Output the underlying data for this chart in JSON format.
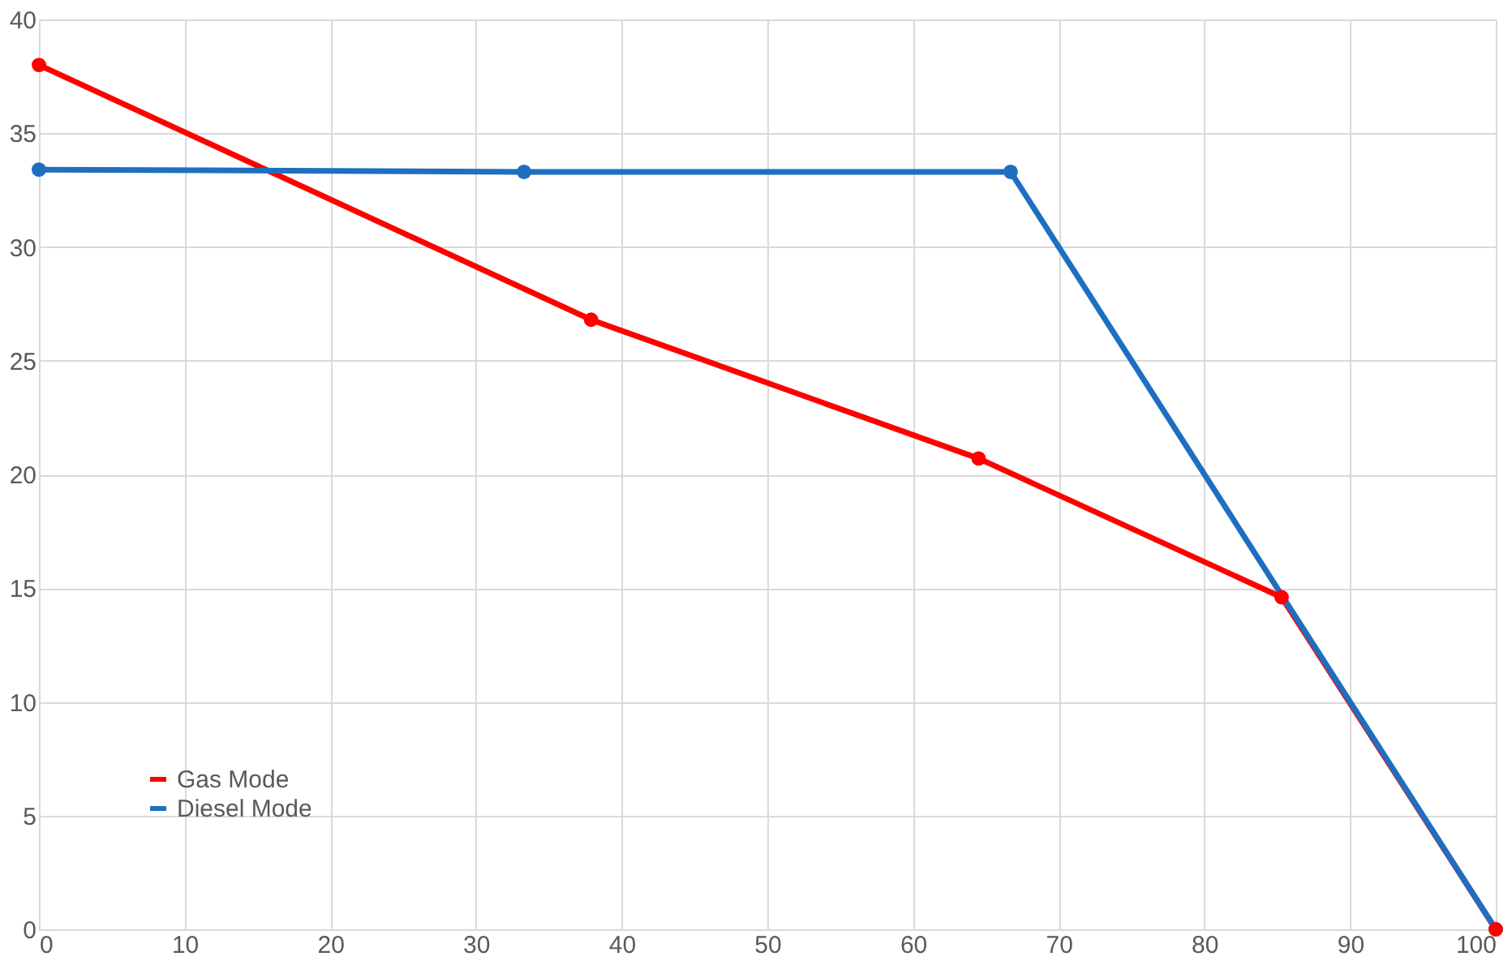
{
  "chart_data": {
    "type": "line",
    "xlim": [
      0,
      100
    ],
    "xticks": [
      0,
      10,
      20,
      30,
      40,
      50,
      60,
      70,
      80,
      90,
      100
    ],
    "ylim": [
      0,
      40
    ],
    "yticks": [
      0,
      5,
      10,
      15,
      20,
      25,
      30,
      35,
      40
    ],
    "grid": true,
    "legend": "bottom left",
    "marker": "circle",
    "line_style": "solid",
    "series": [
      {
        "name": "Gas Mode",
        "color": "#ff0000",
        "x": [
          0,
          37.9,
          64.5,
          85.3,
          100
        ],
        "values": [
          38,
          26.8,
          20.7,
          14.6,
          0
        ]
      },
      {
        "name": "Diesel Mode",
        "color": "#1f6fc0",
        "x": [
          0,
          33.3,
          66.7,
          100
        ],
        "values": [
          33.4,
          33.3,
          33.3,
          0
        ]
      }
    ]
  }
}
